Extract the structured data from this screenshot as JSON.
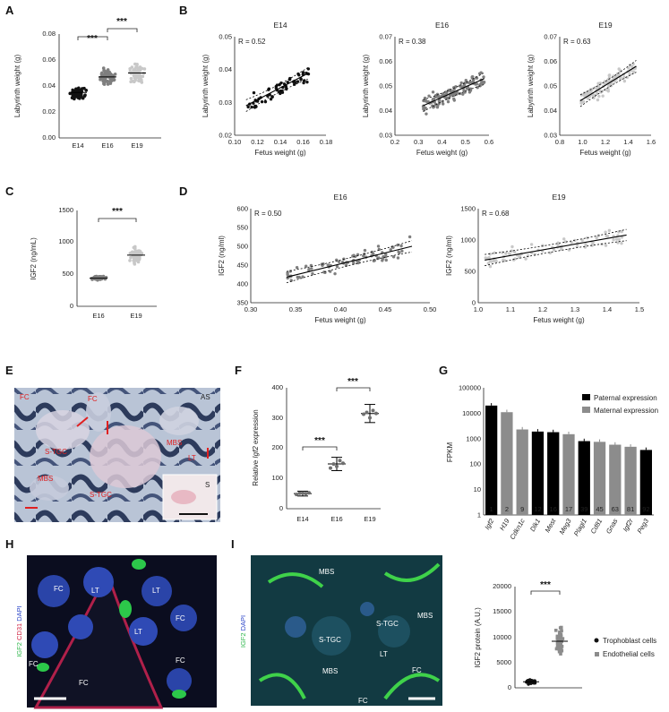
{
  "panel_letters": [
    "A",
    "B",
    "C",
    "D",
    "E",
    "F",
    "G",
    "H",
    "I"
  ],
  "significance": "***",
  "colors": {
    "e14": "#111111",
    "e16": "#7f7f7f",
    "e19": "#c8c8c8",
    "paternal": "#000000",
    "maternal": "#8c8c8c",
    "ihc_bg": "#3a4a6a",
    "if_bg": "#10303a"
  },
  "panelA": {
    "ylabel": "Labyrinth weight (g)",
    "yticks": [
      "0.00",
      "0.02",
      "0.04",
      "0.06",
      "0.08"
    ],
    "chart_data": {
      "type": "scatter",
      "categories": [
        "E14",
        "E16",
        "E19"
      ],
      "means": [
        0.035,
        0.047,
        0.05
      ],
      "ylim": [
        0,
        0.08
      ]
    }
  },
  "panelB": {
    "xlabel": "Fetus weight (g)",
    "ylabel": "Labyrinth weight (g)",
    "charts": [
      {
        "title": "E14",
        "r": "R = 0.52",
        "xticks": [
          "0.10",
          "0.12",
          "0.14",
          "0.16",
          "0.18"
        ],
        "yticks": [
          "0.02",
          "0.03",
          "0.04",
          "0.05"
        ],
        "chart_data": {
          "type": "scatter",
          "xlim": [
            0.1,
            0.18
          ],
          "ylim": [
            0.02,
            0.05
          ],
          "fit": [
            [
              0.11,
              0.029
            ],
            [
              0.165,
              0.039
            ]
          ]
        }
      },
      {
        "title": "E16",
        "r": "R = 0.38",
        "xticks": [
          "0.2",
          "0.3",
          "0.4",
          "0.5",
          "0.6"
        ],
        "yticks": [
          "0.03",
          "0.04",
          "0.05",
          "0.06",
          "0.07"
        ],
        "chart_data": {
          "type": "scatter",
          "xlim": [
            0.2,
            0.6
          ],
          "ylim": [
            0.03,
            0.07
          ],
          "fit": [
            [
              0.32,
              0.042
            ],
            [
              0.58,
              0.053
            ]
          ]
        }
      },
      {
        "title": "E19",
        "r": "R = 0.63",
        "xticks": [
          "0.8",
          "1.0",
          "1.2",
          "1.4",
          "1.6"
        ],
        "yticks": [
          "0.03",
          "0.04",
          "0.05",
          "0.06",
          "0.07"
        ],
        "chart_data": {
          "type": "scatter",
          "xlim": [
            0.8,
            1.6
          ],
          "ylim": [
            0.03,
            0.07
          ],
          "fit": [
            [
              0.98,
              0.044
            ],
            [
              1.47,
              0.058
            ]
          ]
        }
      }
    ]
  },
  "panelC": {
    "ylabel": "IGF2 (ng/mL)",
    "yticks": [
      "0",
      "500",
      "1000",
      "1500"
    ],
    "chart_data": {
      "type": "scatter",
      "categories": [
        "E16",
        "E19"
      ],
      "means": [
        440,
        800
      ],
      "ylim": [
        0,
        1500
      ]
    }
  },
  "panelD": {
    "xlabel": "Fetus weight (g)",
    "ylabel": "IGF2 (ng/ml)",
    "charts": [
      {
        "title": "E16",
        "r": "R = 0.50",
        "xticks": [
          "0.30",
          "0.35",
          "0.40",
          "0.45",
          "0.50"
        ],
        "yticks": [
          "350",
          "400",
          "450",
          "500",
          "550",
          "600"
        ],
        "chart_data": {
          "type": "scatter",
          "xlim": [
            0.3,
            0.5
          ],
          "ylim": [
            350,
            600
          ],
          "fit": [
            [
              0.34,
              418
            ],
            [
              0.48,
              500
            ]
          ]
        }
      },
      {
        "title": "E19",
        "r": "R = 0.68",
        "xticks": [
          "1.0",
          "1.1",
          "1.2",
          "1.3",
          "1.4",
          "1.5"
        ],
        "yticks": [
          "0",
          "500",
          "1000",
          "1500"
        ],
        "chart_data": {
          "type": "scatter",
          "xlim": [
            1.0,
            1.5
          ],
          "ylim": [
            0,
            1500
          ],
          "fit": [
            [
              1.02,
              680
            ],
            [
              1.46,
              1080
            ]
          ]
        }
      }
    ]
  },
  "panelE": {
    "labels": [
      "FC",
      "AS",
      "S-TGC",
      "MBS",
      "MBS",
      "LT",
      "S-TGC",
      "FC",
      "S"
    ],
    "scale_bar": "scale-bar"
  },
  "panelF": {
    "ylabel_pre": "Relative ",
    "ylabel_gene": "Igf2",
    "ylabel_post": " expression",
    "yticks": [
      "0",
      "100",
      "200",
      "300",
      "400"
    ],
    "chart_data": {
      "type": "scatter",
      "categories": [
        "E14",
        "E16",
        "E19"
      ],
      "means": [
        50,
        148,
        315
      ],
      "sd": [
        8,
        22,
        30
      ],
      "ylim": [
        0,
        400
      ]
    }
  },
  "panelG": {
    "ylabel": "FPKM",
    "legend": [
      "Paternal expression",
      "Maternal expression"
    ],
    "yticks": [
      "1",
      "10",
      "100",
      "1000",
      "10000",
      "100000"
    ],
    "chart_data": {
      "type": "bar",
      "log_scale": true,
      "ylim": [
        1,
        100000
      ],
      "categories": [
        "Igf2",
        "H19",
        "Cdkn1c",
        "Dlk1",
        "Mest",
        "Meg3",
        "Plagl1",
        "Cd81",
        "Gnas",
        "Igf2r",
        "Peg3"
      ],
      "values": [
        20000,
        11000,
        2300,
        1900,
        1800,
        1500,
        800,
        750,
        580,
        480,
        360
      ],
      "ranks": [
        "1",
        "2",
        "9",
        "12",
        "16",
        "17",
        "39",
        "45",
        "63",
        "81",
        "92"
      ],
      "origin": [
        "paternal",
        "maternal",
        "maternal",
        "paternal",
        "paternal",
        "maternal",
        "paternal",
        "maternal",
        "maternal",
        "maternal",
        "paternal"
      ]
    }
  },
  "panelH": {
    "channels": [
      "IGF2",
      "CD31",
      "DAPI"
    ],
    "labels": [
      "FC",
      "LT",
      "LT",
      "FC",
      "FC",
      "LT",
      "FC",
      "FC"
    ]
  },
  "panelI": {
    "channels": [
      "IGF2",
      "DAPI"
    ],
    "labels": [
      "MBS",
      "MBS",
      "S-TGC",
      "S-TGC",
      "MBS",
      "LT",
      "FC",
      "FC"
    ]
  },
  "panelI_chart": {
    "ylabel": "IGF2 protein (A.U.)",
    "yticks": [
      "0",
      "5000",
      "10000",
      "15000",
      "20000"
    ],
    "legend": [
      "Trophoblast cells",
      "Endothelial cells"
    ],
    "chart_data": {
      "type": "scatter",
      "categories": [
        "Trophoblast cells",
        "Endothelial cells"
      ],
      "means": [
        1200,
        9200
      ],
      "sd": [
        500,
        2800
      ],
      "ylim": [
        0,
        20000
      ]
    }
  }
}
